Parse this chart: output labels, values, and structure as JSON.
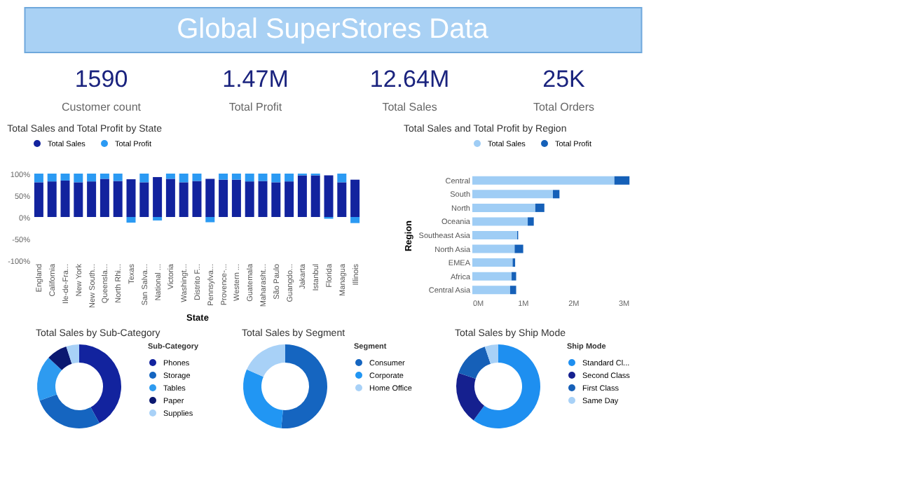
{
  "chart_data": [
    {
      "type": "other",
      "title": "Global SuperStores Data",
      "annotations": [
        "1590",
        "Customer count",
        "1.47M",
        "Total Profit",
        "12.64M",
        "Total Sales",
        "25K",
        "Total Orders"
      ]
    },
    {
      "type": "bar",
      "stacked": true,
      "title": "Total Sales and Total Profit by State",
      "xlabel": "State",
      "legend": "top",
      "categories": [
        "England",
        "California",
        "Ile-de-Fra...",
        "New York",
        "New South...",
        "Queensla...",
        "North Rhi...",
        "Texas",
        "San Salva...",
        "National ...",
        "Victoria",
        "Washingt...",
        "Distrito F...",
        "Pennsylva...",
        "Provence-...",
        "Western ...",
        "Guatemala",
        "Maharasht...",
        "São Paulo",
        "Guangdo...",
        "Jakarta",
        "Istanbul",
        "Florida",
        "Managua",
        "Illinois"
      ],
      "series": [
        {
          "name": "Total Sales",
          "color": "#12239e",
          "values": [
            80,
            82,
            84,
            80,
            82,
            88,
            83,
            87,
            80,
            92,
            88,
            80,
            83,
            88,
            86,
            86,
            82,
            83,
            80,
            82,
            96,
            96,
            96,
            80,
            86
          ]
        },
        {
          "name": "Total Profit",
          "color": "#2b9af3",
          "values": [
            20,
            18,
            16,
            20,
            18,
            12,
            17,
            -13,
            20,
            -8,
            12,
            20,
            17,
            -12,
            14,
            14,
            18,
            17,
            20,
            18,
            4,
            4,
            -4,
            20,
            -14
          ]
        }
      ],
      "ylim": [
        -100,
        100
      ],
      "yticks": [
        {
          "value": -100,
          "label": "-100%"
        },
        {
          "value": -50,
          "label": "-50%"
        },
        {
          "value": 0,
          "label": "0%"
        },
        {
          "value": 50,
          "label": "50%"
        },
        {
          "value": 100,
          "label": "100%"
        }
      ]
    },
    {
      "type": "bar",
      "stacked": true,
      "orientation": "horizontal",
      "title": "Total Sales and Total Profit by Region",
      "ylabel": "Region",
      "legend": "top",
      "categories": [
        "Central",
        "South",
        "North",
        "Oceania",
        "Southeast Asia",
        "North Asia",
        "EMEA",
        "Africa",
        "Central Asia"
      ],
      "series": [
        {
          "name": "Total Sales",
          "color": "#9fcdf5",
          "values": [
            2.82,
            1.6,
            1.25,
            1.1,
            0.89,
            0.84,
            0.8,
            0.78,
            0.75
          ]
        },
        {
          "name": "Total Profit",
          "color": "#1560b8",
          "values": [
            0.3,
            0.13,
            0.18,
            0.12,
            0.02,
            0.17,
            0.05,
            0.09,
            0.12
          ]
        }
      ],
      "xlim": [
        0,
        3.2
      ],
      "xticks": [
        {
          "value": 0,
          "label": "0M"
        },
        {
          "value": 1,
          "label": "1M"
        },
        {
          "value": 2,
          "label": "2M"
        },
        {
          "value": 3,
          "label": "3M"
        }
      ]
    },
    {
      "type": "donut",
      "title": "Total Sales by Sub-Category",
      "legend_title": "Sub-Category",
      "legend": "right",
      "categories": [
        "Phones",
        "Storage",
        "Tables",
        "Paper",
        "Supplies"
      ],
      "values": [
        42,
        27.5,
        17.5,
        8,
        5
      ],
      "colors": [
        "#12239e",
        "#1565c0",
        "#2e9bf0",
        "#0b1870",
        "#a8d1f7"
      ]
    },
    {
      "type": "donut",
      "title": "Total Sales by Segment",
      "legend_title": "Segment",
      "legend": "right",
      "categories": [
        "Consumer",
        "Corporate",
        "Home Office"
      ],
      "values": [
        51.5,
        30.1,
        18.4
      ],
      "colors": [
        "#1565c0",
        "#2196f3",
        "#a8d1f7"
      ]
    },
    {
      "type": "donut",
      "title": "Total Sales by Ship Mode",
      "legend_title": "Ship Mode",
      "legend": "right",
      "categories": [
        "Standard Cl...",
        "Second Class",
        "First Class",
        "Same Day"
      ],
      "values": [
        60,
        20.2,
        14.6,
        5.2
      ],
      "colors": [
        "#1e8ff0",
        "#15208f",
        "#1660b8",
        "#a8d1f7"
      ]
    }
  ]
}
